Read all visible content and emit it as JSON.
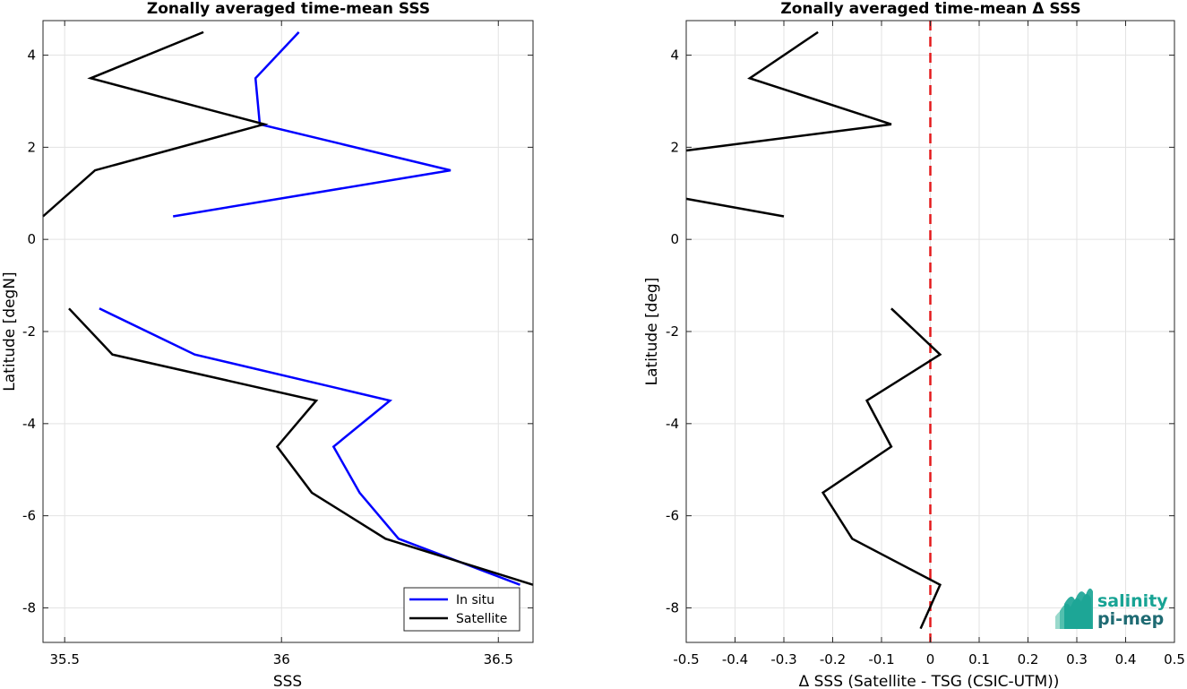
{
  "chart_data": [
    {
      "type": "line",
      "title": "Zonally averaged time-mean SSS",
      "xlabel": "SSS",
      "ylabel": "Latitude [degN]",
      "xlim": [
        35.45,
        36.58
      ],
      "ylim": [
        -8.75,
        4.75
      ],
      "xticks": [
        35.5,
        36,
        36.5
      ],
      "xtick_labels": [
        "35.5",
        "36",
        "36.5"
      ],
      "yticks": [
        -8,
        -6,
        -4,
        -2,
        0,
        2,
        4
      ],
      "ytick_labels": [
        "-8",
        "-6",
        "-4",
        "-2",
        "0",
        "2",
        "4"
      ],
      "grid": true,
      "legend_position": "bottom-right",
      "series": [
        {
          "name": "In situ",
          "color": "#0000ff",
          "segments": [
            [
              [
                36.04,
                4.5
              ],
              [
                35.94,
                3.5
              ],
              [
                35.95,
                2.5
              ],
              [
                36.39,
                1.5
              ],
              [
                35.75,
                0.5
              ]
            ],
            [
              [
                35.58,
                -1.5
              ],
              [
                35.8,
                -2.5
              ],
              [
                36.25,
                -3.5
              ],
              [
                36.12,
                -4.5
              ],
              [
                36.18,
                -5.5
              ],
              [
                36.27,
                -6.5
              ],
              [
                36.55,
                -7.5
              ]
            ]
          ]
        },
        {
          "name": "Satellite",
          "color": "#000000",
          "segments": [
            [
              [
                35.82,
                4.5
              ],
              [
                35.56,
                3.5
              ],
              [
                35.96,
                2.5
              ],
              [
                35.57,
                1.5
              ],
              [
                35.45,
                0.5
              ]
            ],
            [
              [
                35.51,
                -1.5
              ],
              [
                35.61,
                -2.5
              ],
              [
                36.08,
                -3.5
              ],
              [
                35.99,
                -4.5
              ],
              [
                36.07,
                -5.5
              ],
              [
                36.24,
                -6.5
              ],
              [
                36.58,
                -7.5
              ]
            ]
          ]
        }
      ]
    },
    {
      "type": "line",
      "title": "Zonally averaged time-mean Δ SSS",
      "xlabel": "Δ SSS (Satellite - TSG (CSIC-UTM))",
      "ylabel": "Latitude [deg]",
      "xlim": [
        -0.5,
        0.5
      ],
      "ylim": [
        -8.75,
        4.75
      ],
      "xticks": [
        -0.5,
        -0.4,
        -0.3,
        -0.2,
        -0.1,
        0,
        0.1,
        0.2,
        0.3,
        0.4,
        0.5
      ],
      "xtick_labels": [
        "-0.5",
        "-0.4",
        "-0.3",
        "-0.2",
        "-0.1",
        "0",
        "0.1",
        "0.2",
        "0.3",
        "0.4",
        "0.5"
      ],
      "yticks": [
        -8,
        -6,
        -4,
        -2,
        0,
        2,
        4
      ],
      "ytick_labels": [
        "-8",
        "-6",
        "-4",
        "-2",
        "0",
        "2",
        "4"
      ],
      "grid": true,
      "reference_line": {
        "x": 0,
        "color": "#e41a1c",
        "style": "dashed"
      },
      "series": [
        {
          "color": "#000000",
          "segments": [
            [
              [
                -0.23,
                4.5
              ],
              [
                -0.37,
                3.5
              ],
              [
                -0.08,
                2.5
              ],
              [
                -0.5,
                1.93
              ]
            ],
            [
              [
                -0.5,
                0.88
              ],
              [
                -0.3,
                0.5
              ]
            ],
            [
              [
                -0.08,
                -1.5
              ],
              [
                0.02,
                -2.5
              ],
              [
                -0.13,
                -3.5
              ],
              [
                -0.08,
                -4.5
              ],
              [
                -0.22,
                -5.5
              ],
              [
                -0.16,
                -6.5
              ],
              [
                0.02,
                -7.5
              ],
              [
                -0.02,
                -8.45
              ]
            ]
          ]
        }
      ]
    }
  ],
  "logo": {
    "line1": "salinity",
    "line2": "pi-mep",
    "color_primary": "#17a394",
    "color_secondary": "#1f6b73"
  }
}
